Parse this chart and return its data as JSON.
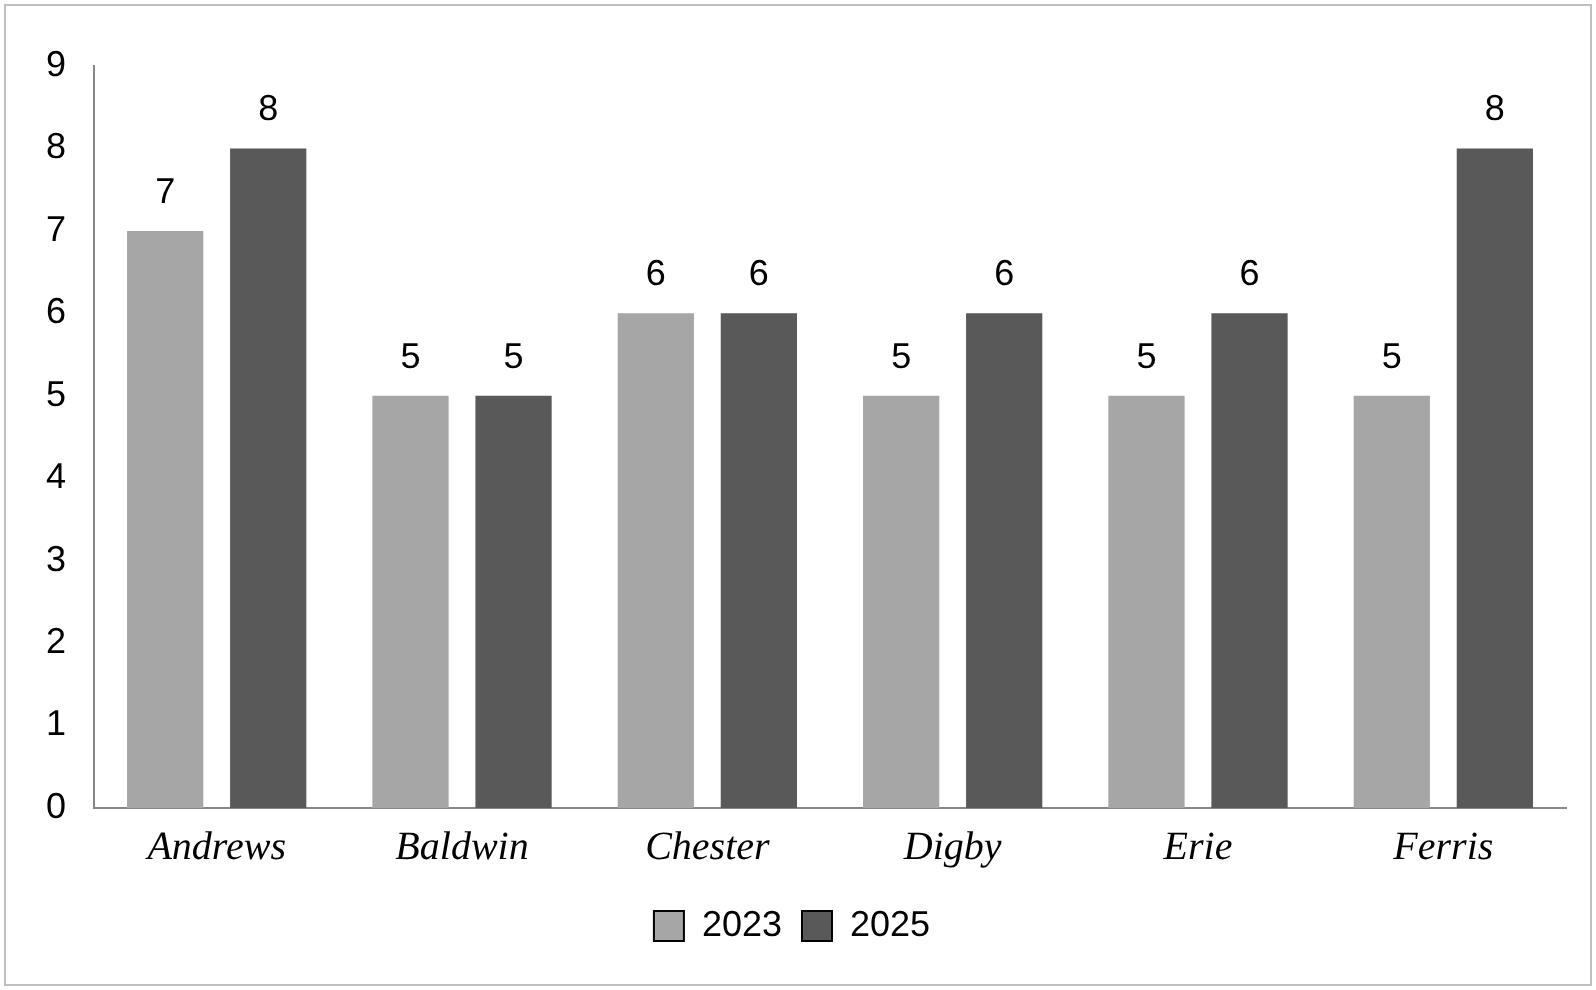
{
  "chart_data": {
    "type": "bar",
    "categories": [
      "Andrews",
      "Baldwin",
      "Chester",
      "Digby",
      "Erie",
      "Ferris"
    ],
    "series": [
      {
        "name": "2023",
        "color": "#a6a6a6",
        "values": [
          7,
          5,
          6,
          5,
          5,
          5
        ]
      },
      {
        "name": "2025",
        "color": "#595959",
        "values": [
          8,
          5,
          6,
          6,
          6,
          8
        ]
      }
    ],
    "ylim": [
      0,
      9
    ],
    "yticks": [
      0,
      1,
      2,
      3,
      4,
      5,
      6,
      7,
      8,
      9
    ],
    "grid": false,
    "legend": "bottom",
    "data_labels": true
  }
}
